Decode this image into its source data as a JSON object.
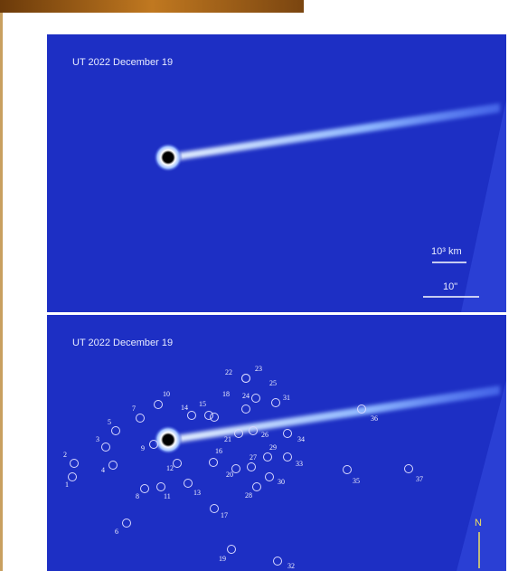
{
  "panels": [
    {
      "date_label": "UT 2022 December 19",
      "scale_km": "10³ km",
      "scale_arcsec": "10\""
    },
    {
      "date_label": "UT 2022 December 19",
      "markers": [
        "1",
        "2",
        "3",
        "4",
        "5",
        "6",
        "7",
        "8",
        "9",
        "10",
        "11",
        "12",
        "13",
        "14",
        "15",
        "16",
        "17",
        "18",
        "19",
        "20",
        "21",
        "22",
        "23",
        "24",
        "25",
        "26",
        "27",
        "28",
        "29",
        "30",
        "31",
        "32",
        "33",
        "34",
        "35",
        "36",
        "37"
      ],
      "north": "N"
    }
  ]
}
